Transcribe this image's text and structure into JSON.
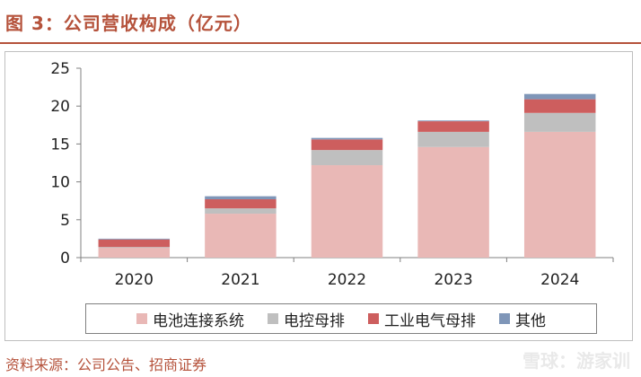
{
  "title": "图 3：公司营收构成（亿元）",
  "source": "资料来源：公司公告、招商证券",
  "watermark": "雪球：游家训",
  "colors": {
    "title": "#b5523b",
    "series": [
      "#e9b8b6",
      "#bfbfbf",
      "#cd5e5e",
      "#7f96b8"
    ]
  },
  "chart_data": {
    "type": "bar",
    "stacked": true,
    "categories": [
      "2020",
      "2021",
      "2022",
      "2023",
      "2024"
    ],
    "series": [
      {
        "name": "电池连接系统",
        "values": [
          1.3,
          5.8,
          12.2,
          14.6,
          16.6
        ]
      },
      {
        "name": "电控母排",
        "values": [
          0.1,
          0.7,
          2.0,
          2.0,
          2.5
        ]
      },
      {
        "name": "工业电气母排",
        "values": [
          1.0,
          1.2,
          1.4,
          1.4,
          1.8
        ]
      },
      {
        "name": "其他",
        "values": [
          0.1,
          0.4,
          0.2,
          0.1,
          0.7
        ]
      }
    ],
    "title": "",
    "xlabel": "",
    "ylabel": "",
    "ylim": [
      0,
      25
    ],
    "yticks": [
      0,
      5,
      10,
      15,
      20,
      25
    ],
    "grid": false,
    "legend_position": "bottom"
  }
}
